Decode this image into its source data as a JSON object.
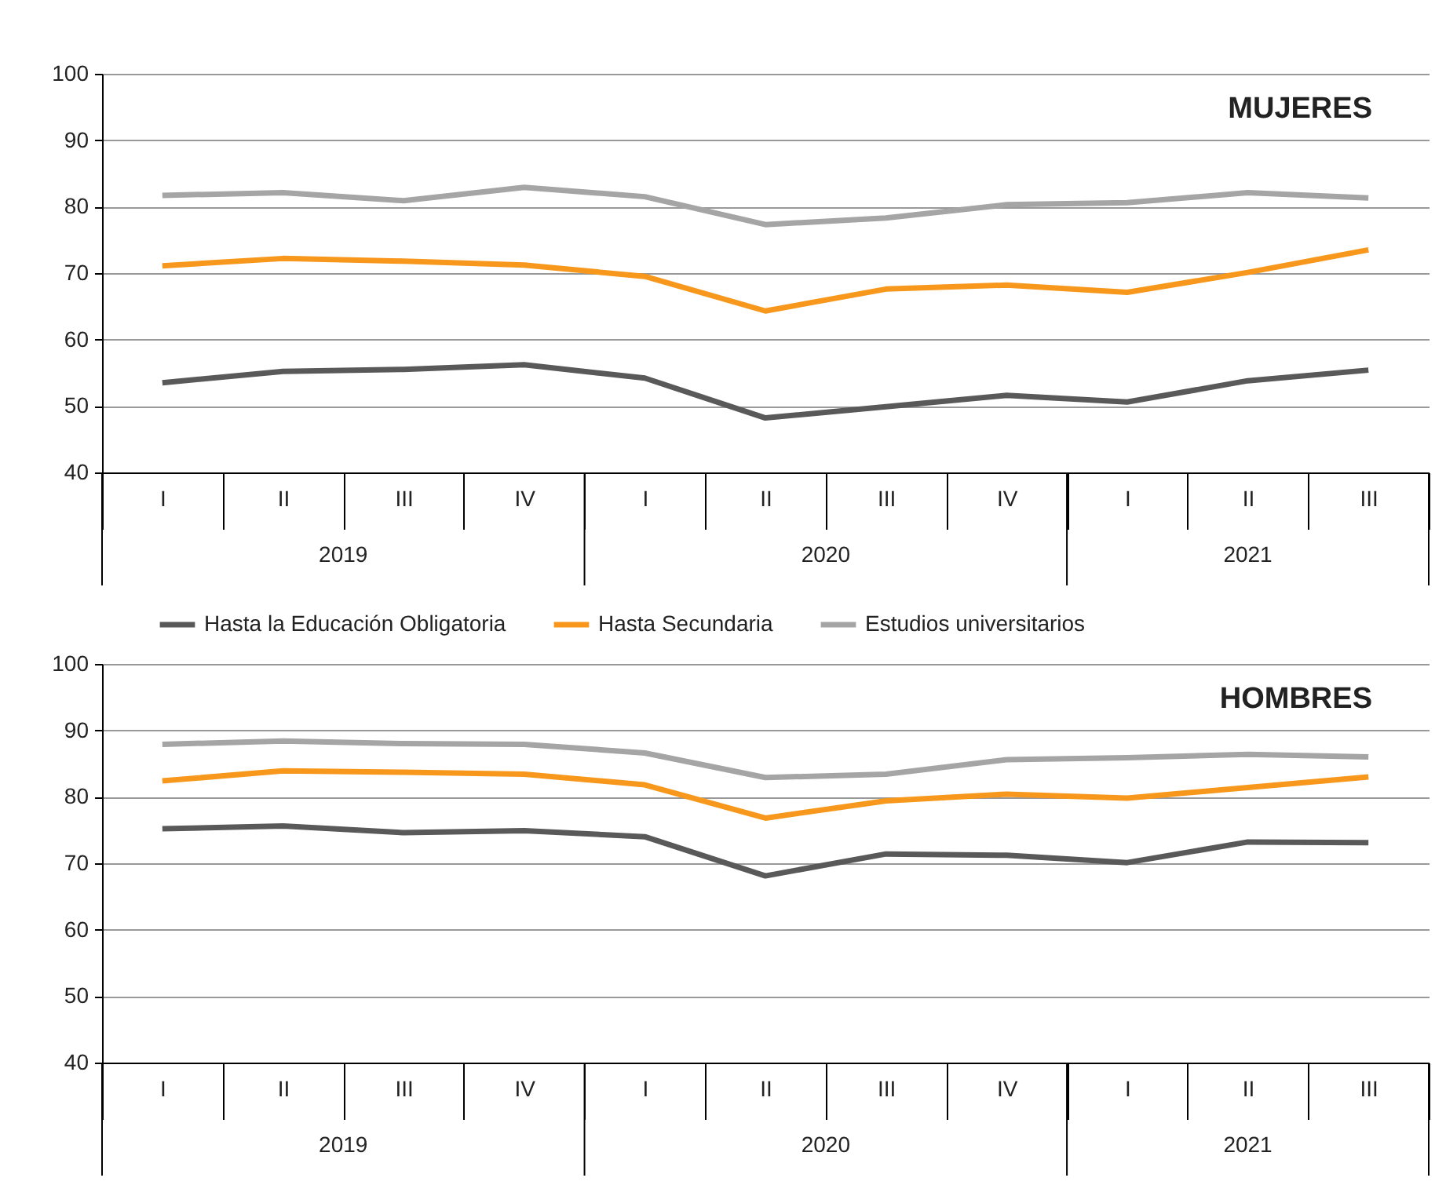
{
  "chart_data": [
    {
      "type": "line",
      "title": "MUJERES",
      "categories": [
        "I",
        "II",
        "III",
        "IV",
        "I",
        "II",
        "III",
        "IV",
        "I",
        "II",
        "III"
      ],
      "annotations": [
        "2019",
        "2020",
        "2021"
      ],
      "ylim": [
        40,
        100
      ],
      "yticks": [
        40,
        50,
        60,
        70,
        80,
        90,
        100
      ],
      "grid": "y",
      "legend": "bottom",
      "series": [
        {
          "name": "Hasta la Educación Obligatoria",
          "color": "#595959",
          "values": [
            53.5,
            55.2,
            55.5,
            56.2,
            54.2,
            48.2,
            49.9,
            51.6,
            50.6,
            53.8,
            55.4
          ]
        },
        {
          "name": "Hasta Secundaria",
          "color": "#f7981d",
          "values": [
            71.1,
            72.2,
            71.8,
            71.2,
            69.5,
            64.3,
            67.6,
            68.2,
            67.1,
            70.1,
            73.5
          ]
        },
        {
          "name": "Estudios universitarios",
          "color": "#a5a5a5",
          "values": [
            81.7,
            82.1,
            80.9,
            82.9,
            81.5,
            77.3,
            78.3,
            80.3,
            80.6,
            82.1,
            81.3
          ]
        }
      ]
    },
    {
      "type": "line",
      "title": "HOMBRES",
      "categories": [
        "I",
        "II",
        "III",
        "IV",
        "I",
        "II",
        "III",
        "IV",
        "I",
        "II",
        "III"
      ],
      "annotations": [
        "2019",
        "2020",
        "2021"
      ],
      "ylim": [
        40,
        100
      ],
      "yticks": [
        40,
        50,
        60,
        70,
        80,
        90,
        100
      ],
      "grid": "y",
      "series": [
        {
          "color": "#595959",
          "values": [
            75.2,
            75.6,
            74.6,
            74.9,
            74.0,
            68.1,
            71.4,
            71.2,
            70.1,
            73.2,
            73.1
          ]
        },
        {
          "color": "#f7981d",
          "values": [
            82.4,
            83.9,
            83.7,
            83.4,
            81.8,
            76.8,
            79.4,
            80.4,
            79.8,
            81.4,
            83.0
          ]
        },
        {
          "color": "#a5a5a5",
          "values": [
            87.9,
            88.4,
            88.0,
            87.9,
            86.6,
            82.9,
            83.4,
            85.6,
            85.9,
            86.4,
            86.0
          ]
        }
      ]
    }
  ]
}
